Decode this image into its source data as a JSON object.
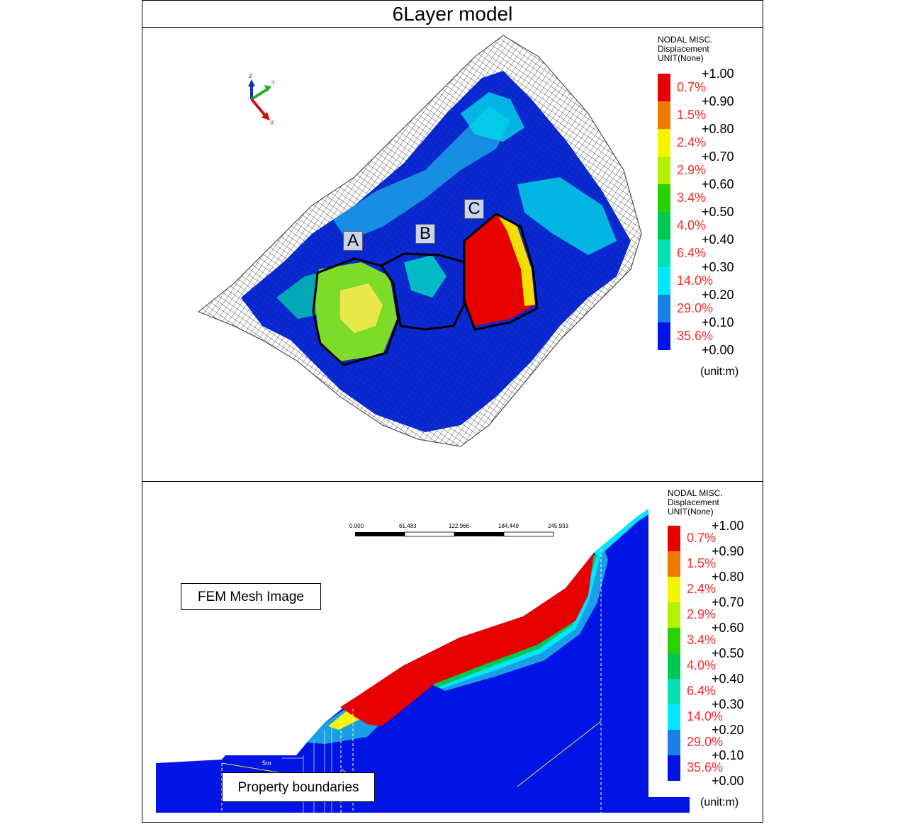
{
  "title": "6Layer model",
  "top_panel": {
    "axes": {
      "z": "Z",
      "y": "Y",
      "x": "X"
    },
    "zones": [
      "A",
      "B",
      "C"
    ],
    "legend": {
      "header": [
        "NODAL MISC.",
        "Displacement",
        "UNIT(None)"
      ],
      "ticks": [
        "+1.00",
        "+0.90",
        "+0.80",
        "+0.70",
        "+0.60",
        "+0.50",
        "+0.40",
        "+0.30",
        "+0.20",
        "+0.10",
        "+0.00"
      ],
      "bands": [
        {
          "pct": "0.7%",
          "color": "#e60000"
        },
        {
          "pct": "1.5%",
          "color": "#f07a00"
        },
        {
          "pct": "2.4%",
          "color": "#f5f500"
        },
        {
          "pct": "2.9%",
          "color": "#b4f000"
        },
        {
          "pct": "3.4%",
          "color": "#2ad000"
        },
        {
          "pct": "4.0%",
          "color": "#00c850"
        },
        {
          "pct": "6.4%",
          "color": "#00e0b4"
        },
        {
          "pct": "14.0%",
          "color": "#00e6ff"
        },
        {
          "pct": "29.0%",
          "color": "#1a7fe6"
        },
        {
          "pct": "35.6%",
          "color": "#0014e6"
        }
      ],
      "unit": "(unit:m)"
    }
  },
  "bottom_panel": {
    "scale_bar": [
      "0.000",
      "61.483",
      "122.966",
      "184.449",
      "245.933"
    ],
    "fem_label": "FEM Mesh Image",
    "property_label": "Property  boundaries",
    "dim_label": "5m",
    "legend": {
      "header": [
        "NODAL MISC.",
        "Displacement",
        "UNIT(None)"
      ],
      "ticks": [
        "+1.00",
        "+0.90",
        "+0.80",
        "+0.70",
        "+0.60",
        "+0.50",
        "+0.40",
        "+0.30",
        "+0.20",
        "+0.10",
        "+0.00"
      ],
      "bands": [
        "0.7%",
        "1.5%",
        "2.4%",
        "2.9%",
        "3.4%",
        "4.0%",
        "6.4%",
        "14.0%",
        "29.0%",
        "35.6%"
      ],
      "unit": "(unit:m)"
    }
  }
}
